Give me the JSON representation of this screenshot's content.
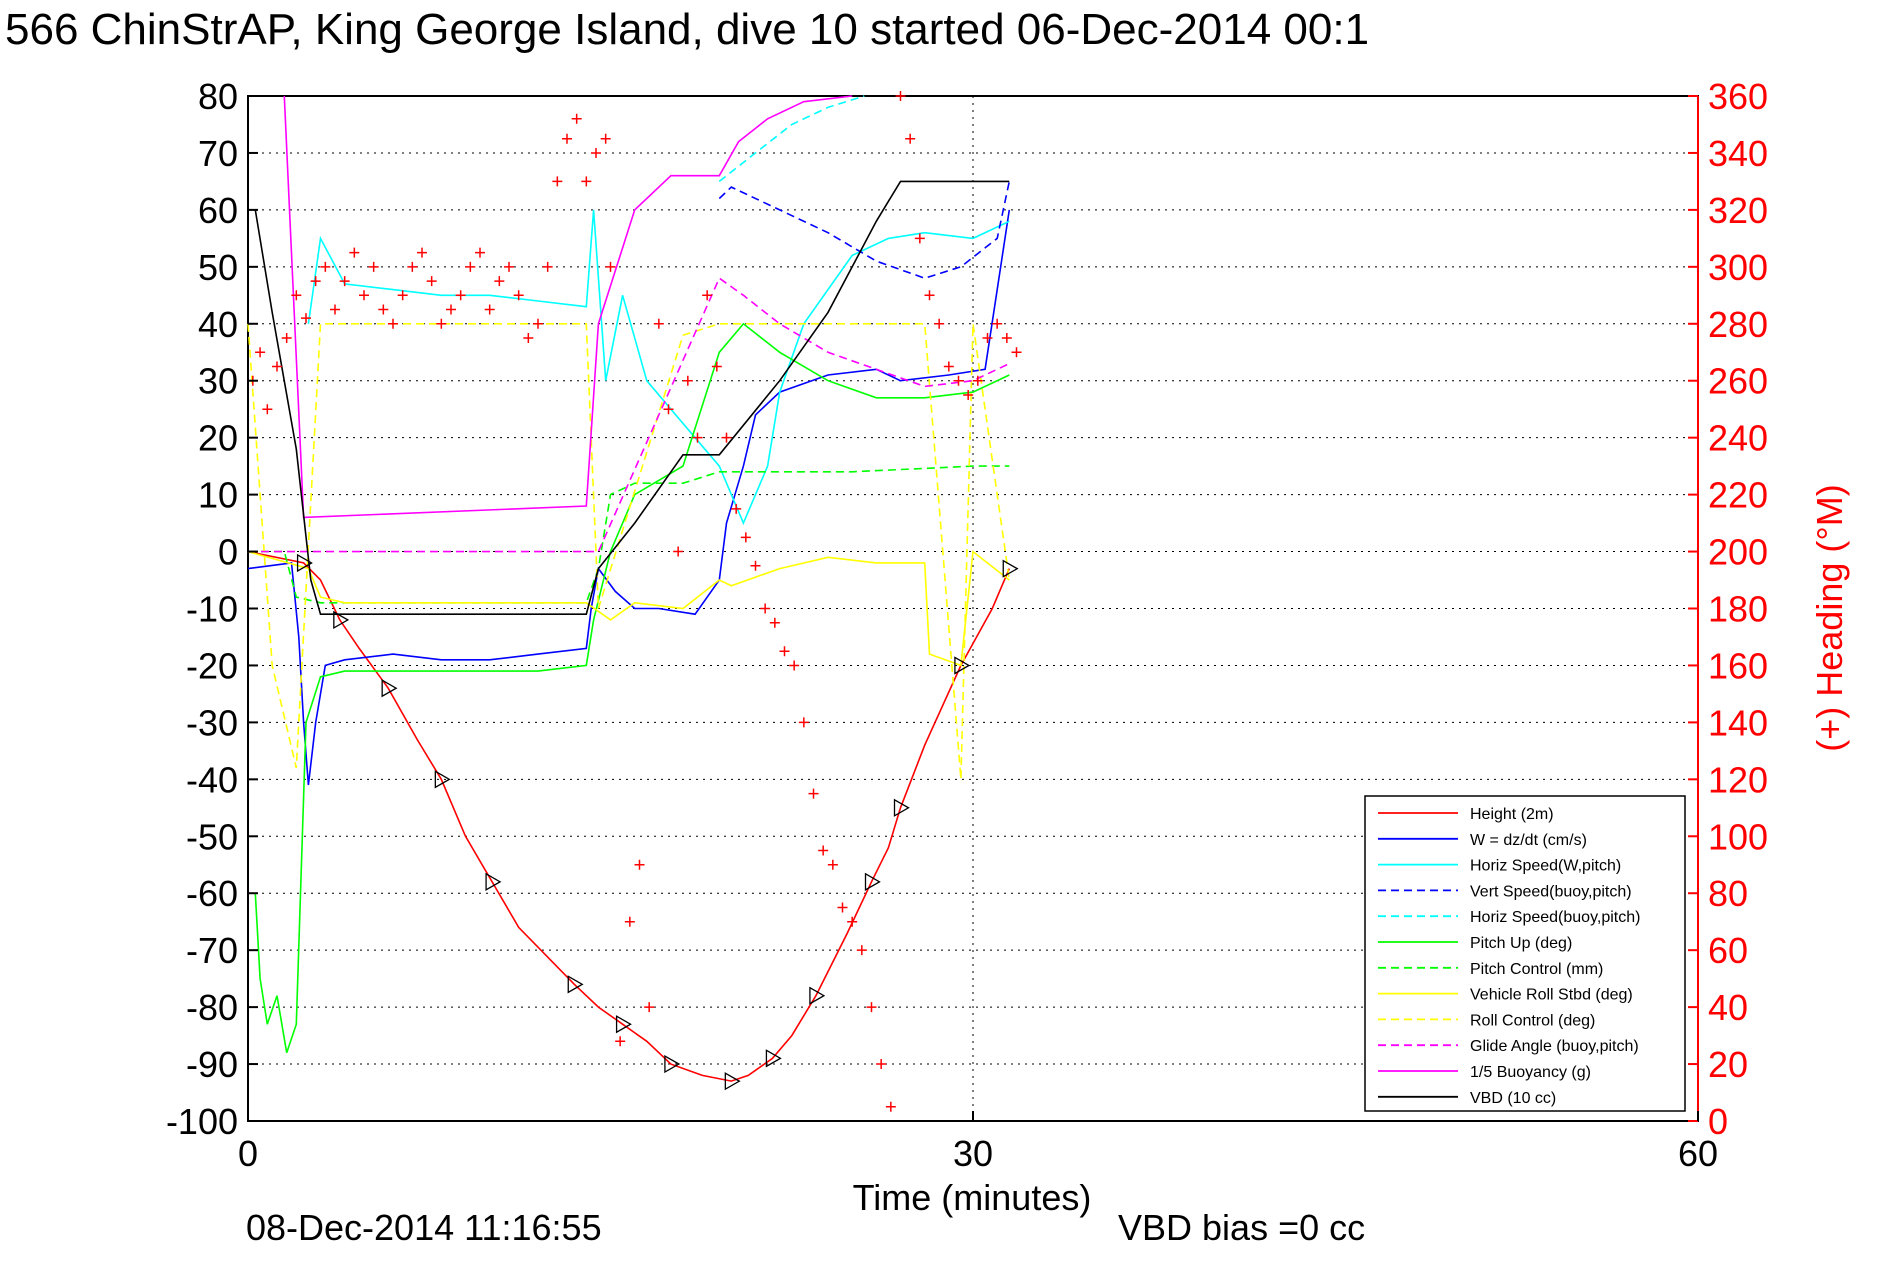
{
  "chart_data": {
    "type": "line",
    "title": "566 ChinStrAP, King George Island, dive 10 started 06-Dec-2014 00:1",
    "xlabel": "Time (minutes)",
    "ylabel_right": "(+) Heading (°M)",
    "footer_date": "08-Dec-2014 11:16:55",
    "footer_note": "VBD bias =0 cc",
    "xlim": [
      0,
      60
    ],
    "ylim": [
      -100,
      80
    ],
    "ylim_right": [
      0,
      360
    ],
    "x_ticks": [
      "0",
      "30",
      "60"
    ],
    "y_ticks": [
      "80",
      "70",
      "60",
      "50",
      "40",
      "30",
      "20",
      "10",
      "0",
      "-10",
      "-20",
      "-30",
      "-40",
      "-50",
      "-60",
      "-70",
      "-80",
      "-90",
      "-100"
    ],
    "y_right_ticks": [
      "360",
      "340",
      "320",
      "300",
      "280",
      "260",
      "240",
      "220",
      "200",
      "180",
      "160",
      "140",
      "120",
      "100",
      "80",
      "60",
      "40",
      "20",
      "0"
    ],
    "grid": true,
    "legend_position": "bottom-right",
    "colors": {
      "right_axis": "#ff0000"
    },
    "series": [
      {
        "name": "Height (2m)",
        "color": "#ff0000",
        "dash": "solid",
        "x": [
          0,
          2.3,
          3,
          3.8,
          4.6,
          5.8,
          7,
          8,
          9,
          10.1,
          11.2,
          13.5,
          14.5,
          15.5,
          16.5,
          17.5,
          18.8,
          20,
          20.7,
          21.7,
          22.5,
          23.5,
          24.8,
          25.8,
          26.5,
          27,
          28,
          29.5,
          30.8,
          31.5
        ],
        "y": [
          0,
          -2,
          -5,
          -12,
          -17,
          -24,
          -33,
          -40,
          -50,
          -58,
          -66,
          -76,
          -80,
          -83,
          -86,
          -90,
          -92,
          -93,
          -92,
          -89,
          -85,
          -78,
          -67,
          -58,
          -52,
          -45,
          -34,
          -20,
          -10,
          -3
        ]
      },
      {
        "name": "W = dz/dt (cm/s)",
        "color": "#0000ff",
        "dash": "solid",
        "x": [
          0,
          1.8,
          2.1,
          2.3,
          2.5,
          2.8,
          3.2,
          4,
          6,
          8,
          10,
          12,
          14,
          14.2,
          14.5,
          15.2,
          16,
          17,
          18.5,
          19.5,
          19.8,
          20.5,
          21,
          22,
          24,
          26,
          27,
          29,
          30.5,
          31.5
        ],
        "y": [
          -3,
          -2,
          -15,
          -30,
          -41,
          -30,
          -20,
          -19,
          -18,
          -19,
          -19,
          -18,
          -17,
          -10,
          -3,
          -7,
          -10,
          -10,
          -11,
          -5,
          5,
          15,
          24,
          28,
          31,
          32,
          30,
          31,
          32,
          60
        ]
      },
      {
        "name": "Horiz Speed(W,pitch)",
        "color": "#00ffff",
        "dash": "solid",
        "x": [
          2.5,
          3,
          4,
          6,
          8,
          10,
          12,
          14,
          14.3,
          14.8,
          15.5,
          16.5,
          17.5,
          18.5,
          19.5,
          20.5,
          21.5,
          22,
          23,
          25,
          26.5,
          28,
          30,
          31.5
        ],
        "y": [
          40,
          55,
          47,
          46,
          45,
          45,
          44,
          43,
          60,
          30,
          45,
          30,
          25,
          20,
          15,
          5,
          15,
          28,
          40,
          52,
          55,
          56,
          55,
          58
        ]
      },
      {
        "name": "Vert Speed(buoy,pitch)",
        "color": "#0000ff",
        "dash": "dashed",
        "x": [
          19.5,
          20,
          22,
          24,
          26,
          28,
          29.5,
          31,
          31.5
        ],
        "y": [
          62,
          64,
          60,
          56,
          51,
          48,
          50,
          55,
          65
        ]
      },
      {
        "name": "Horiz Speed(buoy,pitch)",
        "color": "#00ffff",
        "dash": "dashed",
        "x": [
          19.5,
          21,
          22.5,
          24,
          25.5
        ],
        "y": [
          65,
          70,
          75,
          78,
          80
        ]
      },
      {
        "name": "Pitch Up (deg)",
        "color": "#00ff00",
        "dash": "solid",
        "x": [
          0.3,
          0.5,
          0.8,
          1.2,
          1.6,
          2,
          2.4,
          3,
          4,
          6,
          8,
          10,
          12,
          14,
          14.3,
          15,
          16,
          18,
          19.5,
          20.5,
          22,
          24,
          26,
          28,
          30,
          31.5
        ],
        "y": [
          -60,
          -75,
          -83,
          -78,
          -88,
          -83,
          -30,
          -22,
          -21,
          -21,
          -21,
          -21,
          -21,
          -20,
          -12,
          0,
          10,
          15,
          35,
          40,
          35,
          30,
          27,
          27,
          28,
          31
        ]
      },
      {
        "name": "Pitch Control (mm)",
        "color": "#00ff00",
        "dash": "dashed",
        "x": [
          0,
          1.5,
          2,
          3,
          14,
          14.5,
          15,
          16,
          18,
          19.5,
          20,
          25,
          30,
          31.5
        ],
        "y": [
          0,
          0,
          -8,
          -9,
          -9,
          -3,
          10,
          12,
          12,
          14,
          14,
          14,
          15,
          15
        ]
      },
      {
        "name": "Vehicle Roll Stbd (deg)",
        "color": "#ffff00",
        "dash": "solid",
        "x": [
          0,
          2.5,
          3,
          4,
          6,
          8,
          10,
          12,
          14,
          15,
          16,
          18,
          19.5,
          20,
          22,
          24,
          26,
          28,
          28.2,
          29.5,
          30,
          31.5
        ],
        "y": [
          0,
          -3,
          -8,
          -9,
          -9,
          -9,
          -9,
          -9,
          -9,
          -12,
          -9,
          -10,
          -5,
          -6,
          -3,
          -1,
          -2,
          -2,
          -18,
          -20,
          0,
          -5
        ]
      },
      {
        "name": "Roll Control (deg)",
        "color": "#ffff00",
        "dash": "dashed",
        "x": [
          0,
          1,
          2,
          3,
          14,
          14.5,
          18,
          19.5,
          28,
          29.5,
          30,
          31.5
        ],
        "y": [
          40,
          -20,
          -38,
          40,
          40,
          -10,
          38,
          40,
          40,
          -40,
          40,
          -5
        ]
      },
      {
        "name": "Glide Angle (buoy,pitch)",
        "color": "#ff00ff",
        "dash": "dashed",
        "x": [
          0,
          14,
          14.5,
          19.5,
          20.5,
          22,
          24,
          26,
          28,
          30,
          31.5
        ],
        "y": [
          0,
          0,
          0,
          48,
          45,
          40,
          35,
          32,
          29,
          30,
          33
        ]
      },
      {
        "name": "1/5 Buoyancy (g)",
        "color": "#ff00ff",
        "dash": "solid",
        "x": [
          1.5,
          2.3,
          14,
          14.5,
          16,
          17.5,
          19.5,
          20.3,
          21.5,
          23,
          25
        ],
        "y": [
          80,
          6,
          8,
          40,
          60,
          66,
          66,
          72,
          76,
          79,
          80
        ]
      },
      {
        "name": "VBD (10 cc)",
        "color": "#000000",
        "dash": "solid",
        "x": [
          0.3,
          1,
          2,
          2.6,
          3,
          14,
          14.5,
          16,
          18,
          19.5,
          22,
          24,
          25,
          26,
          27,
          28.5,
          31.5
        ],
        "y": [
          60,
          42,
          18,
          -5,
          -11,
          -11,
          -3,
          5,
          17,
          17,
          30,
          42,
          50,
          58,
          65,
          65,
          65
        ]
      }
    ],
    "heading_points": {
      "name": "(+) Heading",
      "color": "#ff0000",
      "marker": "+",
      "x": [
        0.2,
        0.5,
        0.8,
        1.2,
        1.6,
        2,
        2.4,
        2.8,
        3.2,
        3.6,
        4,
        4.4,
        4.8,
        5.2,
        5.6,
        6,
        6.4,
        6.8,
        7.2,
        7.6,
        8,
        8.4,
        8.8,
        9.2,
        9.6,
        10,
        10.4,
        10.8,
        11.2,
        11.6,
        12,
        12.4,
        12.8,
        13.2,
        13.6,
        14,
        14.4,
        14.8,
        15,
        15.4,
        15.8,
        16.2,
        16.6,
        17,
        17.4,
        17.8,
        18.2,
        18.6,
        19,
        19.4,
        19.8,
        20.2,
        20.6,
        21,
        21.4,
        21.8,
        22.2,
        22.6,
        23,
        23.4,
        23.8,
        24.2,
        24.6,
        25,
        25.4,
        25.8,
        26.2,
        26.6,
        27,
        27.4,
        27.8,
        28.2,
        28.6,
        29,
        29.4,
        29.8,
        30.2,
        30.6,
        31,
        31.4,
        31.8
      ],
      "y": [
        260,
        270,
        250,
        265,
        275,
        290,
        282,
        295,
        300,
        285,
        295,
        305,
        290,
        300,
        285,
        280,
        290,
        300,
        305,
        295,
        280,
        285,
        290,
        300,
        305,
        285,
        295,
        300,
        290,
        275,
        280,
        300,
        330,
        345,
        352,
        330,
        340,
        345,
        300,
        28,
        70,
        90,
        40,
        280,
        250,
        200,
        260,
        240,
        290,
        265,
        240,
        215,
        205,
        195,
        180,
        175,
        165,
        160,
        140,
        115,
        95,
        90,
        75,
        70,
        60,
        40,
        20,
        5,
        360,
        345,
        310,
        290,
        280,
        265,
        260,
        255,
        260,
        275,
        280,
        275,
        270
      ]
    }
  }
}
